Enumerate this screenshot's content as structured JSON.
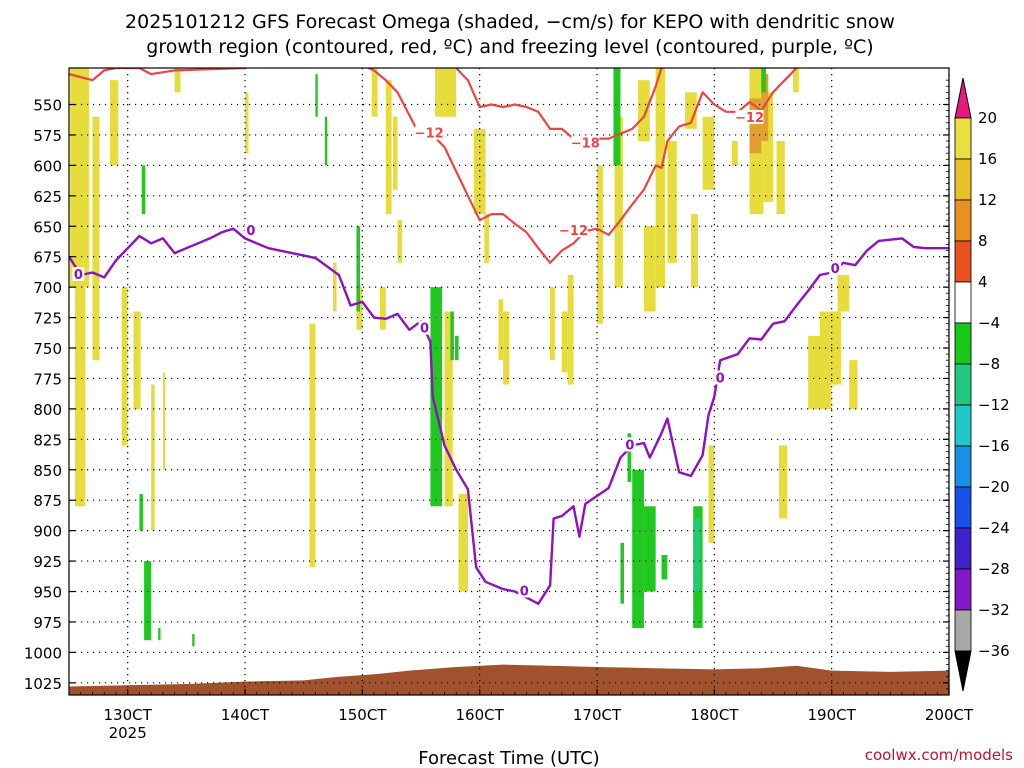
{
  "chart_data": {
    "type": "time-height",
    "title_line1": "2025101212 GFS Forecast Omega (shaded, −cm/s) for KEPO with dendritic snow",
    "title_line2": "growth region (contoured, red, ºC) and freezing level (contoured, purple, ºC)",
    "xlabel": "Forecast Time (UTC)",
    "credit": "coolwx.com/models",
    "x_range_hours": [
      125,
      200
    ],
    "x_ticks": [
      {
        "t": 130,
        "label": "130CT",
        "sub": "2025"
      },
      {
        "t": 140,
        "label": "140CT"
      },
      {
        "t": 150,
        "label": "150CT"
      },
      {
        "t": 160,
        "label": "160CT"
      },
      {
        "t": 170,
        "label": "170CT"
      },
      {
        "t": 180,
        "label": "180CT"
      },
      {
        "t": 190,
        "label": "190CT"
      },
      {
        "t": 200,
        "label": "200CT"
      }
    ],
    "y_range_hpa": [
      1035,
      520
    ],
    "y_ticks": [
      550,
      575,
      600,
      625,
      650,
      675,
      700,
      725,
      750,
      775,
      800,
      825,
      850,
      875,
      900,
      925,
      950,
      975,
      1000,
      1025
    ],
    "colorbar": {
      "labels": [
        "20",
        "16",
        "12",
        "8",
        "4",
        "−4",
        "−8",
        "−12",
        "−16",
        "−20",
        "−24",
        "−28",
        "−32",
        "−36"
      ],
      "colors": [
        "#e8e040",
        "#e8c028",
        "#e89020",
        "#e85020",
        "#ffffff",
        "#18c818",
        "#20c880",
        "#20c8c8",
        "#1890e8",
        "#1850e8",
        "#4020c8",
        "#8018c8",
        "#a8a8a8"
      ],
      "top_arrow_color": "#e81880",
      "bottom_arrow_color": "#000000"
    },
    "omega_positive_color": "#e6dc3c",
    "omega_negative_color": "#22c822",
    "omega_strong_positive_color": "#e0a030",
    "terrain_color": "#a0522d",
    "dgz_color": "#ee4444",
    "freezing_color": "#9010c0",
    "freezing_level_series": [
      {
        "t": 125.0,
        "p": 675
      },
      {
        "t": 126.0,
        "p": 690
      },
      {
        "t": 127.0,
        "p": 688
      },
      {
        "t": 128.0,
        "p": 692
      },
      {
        "t": 129.0,
        "p": 678
      },
      {
        "t": 130.0,
        "p": 668
      },
      {
        "t": 131.0,
        "p": 658
      },
      {
        "t": 132.0,
        "p": 664
      },
      {
        "t": 133.0,
        "p": 660
      },
      {
        "t": 134.0,
        "p": 672
      },
      {
        "t": 135.0,
        "p": 668
      },
      {
        "t": 136.0,
        "p": 664
      },
      {
        "t": 137.0,
        "p": 660
      },
      {
        "t": 138.0,
        "p": 655
      },
      {
        "t": 139.0,
        "p": 652
      },
      {
        "t": 140.0,
        "p": 660
      },
      {
        "t": 142.0,
        "p": 668
      },
      {
        "t": 144.0,
        "p": 672
      },
      {
        "t": 146.0,
        "p": 676
      },
      {
        "t": 148.0,
        "p": 690
      },
      {
        "t": 149.0,
        "p": 715
      },
      {
        "t": 150.0,
        "p": 712
      },
      {
        "t": 151.0,
        "p": 725
      },
      {
        "t": 152.0,
        "p": 726
      },
      {
        "t": 153.0,
        "p": 722
      },
      {
        "t": 154.0,
        "p": 735
      },
      {
        "t": 155.0,
        "p": 728
      },
      {
        "t": 155.8,
        "p": 745
      },
      {
        "t": 156.0,
        "p": 790
      },
      {
        "t": 157.0,
        "p": 830
      },
      {
        "t": 158.0,
        "p": 850
      },
      {
        "t": 159.0,
        "p": 866
      },
      {
        "t": 159.7,
        "p": 930
      },
      {
        "t": 160.5,
        "p": 942
      },
      {
        "t": 162.0,
        "p": 948
      },
      {
        "t": 163.0,
        "p": 950
      },
      {
        "t": 164.0,
        "p": 955
      },
      {
        "t": 165.0,
        "p": 960
      },
      {
        "t": 166.0,
        "p": 945
      },
      {
        "t": 166.3,
        "p": 890
      },
      {
        "t": 167.0,
        "p": 888
      },
      {
        "t": 168.0,
        "p": 880
      },
      {
        "t": 168.5,
        "p": 905
      },
      {
        "t": 169.0,
        "p": 878
      },
      {
        "t": 171.0,
        "p": 865
      },
      {
        "t": 172.0,
        "p": 840
      },
      {
        "t": 173.0,
        "p": 830
      },
      {
        "t": 174.0,
        "p": 828
      },
      {
        "t": 174.5,
        "p": 840
      },
      {
        "t": 175.5,
        "p": 820
      },
      {
        "t": 176.0,
        "p": 808
      },
      {
        "t": 177.0,
        "p": 852
      },
      {
        "t": 178.0,
        "p": 855
      },
      {
        "t": 179.0,
        "p": 838
      },
      {
        "t": 179.5,
        "p": 805
      },
      {
        "t": 180.0,
        "p": 790
      },
      {
        "t": 180.5,
        "p": 760
      },
      {
        "t": 182.0,
        "p": 755
      },
      {
        "t": 183.0,
        "p": 742
      },
      {
        "t": 184.0,
        "p": 743
      },
      {
        "t": 185.0,
        "p": 730
      },
      {
        "t": 186.0,
        "p": 728
      },
      {
        "t": 187.0,
        "p": 715
      },
      {
        "t": 188.0,
        "p": 703
      },
      {
        "t": 189.0,
        "p": 690
      },
      {
        "t": 190.0,
        "p": 688
      },
      {
        "t": 191.0,
        "p": 680
      },
      {
        "t": 192.0,
        "p": 682
      },
      {
        "t": 193.0,
        "p": 670
      },
      {
        "t": 194.0,
        "p": 662
      },
      {
        "t": 196.0,
        "p": 660
      },
      {
        "t": 197.0,
        "p": 667
      },
      {
        "t": 198.0,
        "p": 668
      },
      {
        "t": 200.0,
        "p": 668
      }
    ],
    "dgz_upper_series": [
      {
        "t": 125.0,
        "p": 525
      },
      {
        "t": 127.0,
        "p": 530
      },
      {
        "t": 128.0,
        "p": 522
      },
      {
        "t": 129.0,
        "p": 520
      },
      {
        "t": 131.0,
        "p": 520
      },
      {
        "t": 132.0,
        "p": 525
      },
      {
        "t": 134.0,
        "p": 522
      },
      {
        "t": 140.0,
        "p": 520
      }
    ],
    "dgz_main_series": [
      {
        "t": 150.5,
        "p": 520
      },
      {
        "t": 151.0,
        "p": 522
      },
      {
        "t": 152.0,
        "p": 530
      },
      {
        "t": 153.0,
        "p": 540
      },
      {
        "t": 154.5,
        "p": 568
      },
      {
        "t": 156.0,
        "p": 575
      },
      {
        "t": 157.0,
        "p": 585
      },
      {
        "t": 158.0,
        "p": 605
      },
      {
        "t": 159.0,
        "p": 625
      },
      {
        "t": 160.0,
        "p": 645
      },
      {
        "t": 161.0,
        "p": 640
      },
      {
        "t": 162.0,
        "p": 640
      },
      {
        "t": 163.0,
        "p": 648
      },
      {
        "t": 164.0,
        "p": 655
      },
      {
        "t": 165.0,
        "p": 668
      },
      {
        "t": 166.0,
        "p": 680
      },
      {
        "t": 167.0,
        "p": 670
      },
      {
        "t": 168.0,
        "p": 664
      },
      {
        "t": 169.0,
        "p": 654
      },
      {
        "t": 170.0,
        "p": 652
      },
      {
        "t": 171.0,
        "p": 657
      },
      {
        "t": 172.0,
        "p": 645
      },
      {
        "t": 173.0,
        "p": 632
      },
      {
        "t": 174.0,
        "p": 620
      },
      {
        "t": 175.0,
        "p": 600
      },
      {
        "t": 175.5,
        "p": 602
      },
      {
        "t": 176.0,
        "p": 580
      },
      {
        "t": 177.0,
        "p": 568
      },
      {
        "t": 178.0,
        "p": 565
      },
      {
        "t": 179.0,
        "p": 540
      },
      {
        "t": 180.0,
        "p": 550
      },
      {
        "t": 181.0,
        "p": 556
      },
      {
        "t": 182.0,
        "p": 556
      },
      {
        "t": 183.0,
        "p": 548
      },
      {
        "t": 184.0,
        "p": 555
      },
      {
        "t": 185.0,
        "p": 540
      },
      {
        "t": 186.0,
        "p": 530
      },
      {
        "t": 187.0,
        "p": 520
      }
    ],
    "dgz_inner_series": [
      {
        "t": 158.0,
        "p": 520
      },
      {
        "t": 159.0,
        "p": 530
      },
      {
        "t": 160.0,
        "p": 552
      },
      {
        "t": 161.0,
        "p": 550
      },
      {
        "t": 162.0,
        "p": 552
      },
      {
        "t": 163.0,
        "p": 550
      },
      {
        "t": 164.0,
        "p": 552
      },
      {
        "t": 165.0,
        "p": 556
      },
      {
        "t": 166.0,
        "p": 570
      },
      {
        "t": 167.0,
        "p": 570
      },
      {
        "t": 168.0,
        "p": 578
      },
      {
        "t": 169.0,
        "p": 584
      },
      {
        "t": 170.0,
        "p": 578
      },
      {
        "t": 171.0,
        "p": 578
      },
      {
        "t": 172.0,
        "p": 574
      },
      {
        "t": 173.0,
        "p": 570
      },
      {
        "t": 174.0,
        "p": 560
      },
      {
        "t": 175.0,
        "p": 535
      },
      {
        "t": 175.5,
        "p": 520
      }
    ],
    "terrain_series": [
      {
        "t": 125.0,
        "p": 1028
      },
      {
        "t": 130.0,
        "p": 1027
      },
      {
        "t": 135.0,
        "p": 1026
      },
      {
        "t": 140.0,
        "p": 1024
      },
      {
        "t": 145.0,
        "p": 1023
      },
      {
        "t": 148.0,
        "p": 1020
      },
      {
        "t": 151.0,
        "p": 1018
      },
      {
        "t": 154.0,
        "p": 1015
      },
      {
        "t": 158.0,
        "p": 1012
      },
      {
        "t": 162.0,
        "p": 1010
      },
      {
        "t": 166.0,
        "p": 1011
      },
      {
        "t": 170.0,
        "p": 1012
      },
      {
        "t": 175.0,
        "p": 1013
      },
      {
        "t": 180.0,
        "p": 1014
      },
      {
        "t": 184.0,
        "p": 1013
      },
      {
        "t": 187.0,
        "p": 1011
      },
      {
        "t": 190.0,
        "p": 1015
      },
      {
        "t": 195.0,
        "p": 1016
      },
      {
        "t": 200.0,
        "p": 1015
      }
    ],
    "omega_positive_regions": [
      {
        "t0": 125.1,
        "t1": 126.7,
        "p0": 520,
        "p1": 700
      },
      {
        "t0": 125.5,
        "t1": 126.4,
        "p0": 700,
        "p1": 880
      },
      {
        "t0": 127.0,
        "t1": 127.6,
        "p0": 560,
        "p1": 760
      },
      {
        "t0": 128.5,
        "t1": 129.2,
        "p0": 530,
        "p1": 600
      },
      {
        "t0": 129.5,
        "t1": 130.0,
        "p0": 700,
        "p1": 830
      },
      {
        "t0": 130.5,
        "t1": 131.1,
        "p0": 720,
        "p1": 800
      },
      {
        "t0": 132.0,
        "t1": 132.3,
        "p0": 780,
        "p1": 900
      },
      {
        "t0": 133.0,
        "t1": 133.2,
        "p0": 770,
        "p1": 850
      },
      {
        "t0": 134.0,
        "t1": 134.5,
        "p0": 520,
        "p1": 540
      },
      {
        "t0": 140.0,
        "t1": 140.3,
        "p0": 540,
        "p1": 590
      },
      {
        "t0": 145.5,
        "t1": 146.0,
        "p0": 730,
        "p1": 930
      },
      {
        "t0": 147.5,
        "t1": 147.8,
        "p0": 680,
        "p1": 720
      },
      {
        "t0": 149.5,
        "t1": 150.0,
        "p0": 700,
        "p1": 735
      },
      {
        "t0": 151.5,
        "t1": 152.0,
        "p0": 700,
        "p1": 735
      },
      {
        "t0": 150.8,
        "t1": 151.3,
        "p0": 520,
        "p1": 560
      },
      {
        "t0": 152.0,
        "t1": 152.5,
        "p0": 530,
        "p1": 640
      },
      {
        "t0": 152.6,
        "t1": 153.0,
        "p0": 560,
        "p1": 620
      },
      {
        "t0": 153.0,
        "t1": 153.4,
        "p0": 645,
        "p1": 680
      },
      {
        "t0": 156.2,
        "t1": 158.0,
        "p0": 520,
        "p1": 560
      },
      {
        "t0": 157.0,
        "t1": 157.7,
        "p0": 720,
        "p1": 880
      },
      {
        "t0": 158.2,
        "t1": 159.0,
        "p0": 870,
        "p1": 950
      },
      {
        "t0": 159.5,
        "t1": 160.5,
        "p0": 570,
        "p1": 640
      },
      {
        "t0": 160.4,
        "t1": 160.8,
        "p0": 640,
        "p1": 680
      },
      {
        "t0": 161.6,
        "t1": 162.0,
        "p0": 710,
        "p1": 760
      },
      {
        "t0": 162.0,
        "t1": 162.5,
        "p0": 720,
        "p1": 780
      },
      {
        "t0": 166.0,
        "t1": 166.4,
        "p0": 700,
        "p1": 760
      },
      {
        "t0": 167.0,
        "t1": 167.5,
        "p0": 720,
        "p1": 770
      },
      {
        "t0": 167.5,
        "t1": 168.0,
        "p0": 690,
        "p1": 780
      },
      {
        "t0": 170.0,
        "t1": 170.5,
        "p0": 600,
        "p1": 730
      },
      {
        "t0": 171.5,
        "t1": 172.2,
        "p0": 560,
        "p1": 700
      },
      {
        "t0": 173.5,
        "t1": 174.5,
        "p0": 530,
        "p1": 580
      },
      {
        "t0": 174.0,
        "t1": 175.0,
        "p0": 650,
        "p1": 720
      },
      {
        "t0": 175.0,
        "t1": 175.8,
        "p0": 520,
        "p1": 700
      },
      {
        "t0": 176.0,
        "t1": 176.8,
        "p0": 580,
        "p1": 680
      },
      {
        "t0": 177.5,
        "t1": 178.5,
        "p0": 540,
        "p1": 570
      },
      {
        "t0": 178.0,
        "t1": 178.6,
        "p0": 640,
        "p1": 700
      },
      {
        "t0": 179.0,
        "t1": 180.0,
        "p0": 560,
        "p1": 620
      },
      {
        "t0": 179.5,
        "t1": 180.0,
        "p0": 830,
        "p1": 910
      },
      {
        "t0": 181.5,
        "t1": 182.0,
        "p0": 580,
        "p1": 600
      },
      {
        "t0": 183.0,
        "t1": 184.2,
        "p0": 520,
        "p1": 640
      },
      {
        "t0": 184.2,
        "t1": 185.0,
        "p0": 540,
        "p1": 630
      },
      {
        "t0": 185.3,
        "t1": 186.0,
        "p0": 580,
        "p1": 640
      },
      {
        "t0": 186.7,
        "t1": 187.2,
        "p0": 520,
        "p1": 540
      },
      {
        "t0": 185.5,
        "t1": 186.2,
        "p0": 830,
        "p1": 890
      },
      {
        "t0": 188.0,
        "t1": 190.0,
        "p0": 740,
        "p1": 800
      },
      {
        "t0": 189.0,
        "t1": 190.8,
        "p0": 720,
        "p1": 780
      },
      {
        "t0": 191.5,
        "t1": 192.2,
        "p0": 760,
        "p1": 800
      },
      {
        "t0": 190.5,
        "t1": 191.5,
        "p0": 690,
        "p1": 720
      }
    ],
    "omega_strong_positive_regions": [
      {
        "t0": 183.0,
        "t1": 184.0,
        "p0": 545,
        "p1": 590
      },
      {
        "t0": 184.0,
        "t1": 184.6,
        "p0": 525,
        "p1": 580
      }
    ],
    "omega_negative_regions": [
      {
        "t0": 131.2,
        "t1": 131.5,
        "p0": 600,
        "p1": 640
      },
      {
        "t0": 131.0,
        "t1": 131.3,
        "p0": 870,
        "p1": 900
      },
      {
        "t0": 131.4,
        "t1": 132.0,
        "p0": 925,
        "p1": 990
      },
      {
        "t0": 132.6,
        "t1": 132.8,
        "p0": 980,
        "p1": 990
      },
      {
        "t0": 135.5,
        "t1": 135.7,
        "p0": 985,
        "p1": 995
      },
      {
        "t0": 146.0,
        "t1": 146.2,
        "p0": 525,
        "p1": 560
      },
      {
        "t0": 146.8,
        "t1": 147.0,
        "p0": 560,
        "p1": 600
      },
      {
        "t0": 149.5,
        "t1": 149.8,
        "p0": 650,
        "p1": 720
      },
      {
        "t0": 155.8,
        "t1": 156.8,
        "p0": 700,
        "p1": 880
      },
      {
        "t0": 157.5,
        "t1": 157.8,
        "p0": 720,
        "p1": 760
      },
      {
        "t0": 157.9,
        "t1": 158.2,
        "p0": 740,
        "p1": 760
      },
      {
        "t0": 171.4,
        "t1": 172.0,
        "p0": 520,
        "p1": 600
      },
      {
        "t0": 172.6,
        "t1": 172.9,
        "p0": 820,
        "p1": 860
      },
      {
        "t0": 173.0,
        "t1": 174.0,
        "p0": 850,
        "p1": 980
      },
      {
        "t0": 174.0,
        "t1": 175.0,
        "p0": 880,
        "p1": 950
      },
      {
        "t0": 172.0,
        "t1": 172.3,
        "p0": 910,
        "p1": 960
      },
      {
        "t0": 175.5,
        "t1": 176.0,
        "p0": 920,
        "p1": 940
      },
      {
        "t0": 178.2,
        "t1": 179.0,
        "p0": 880,
        "p1": 980
      },
      {
        "t0": 184.0,
        "t1": 184.4,
        "p0": 520,
        "p1": 540
      }
    ],
    "omega_teal_regions": [
      {
        "t0": 178.3,
        "t1": 178.8,
        "p0": 890,
        "p1": 950
      }
    ],
    "contour_labels": [
      {
        "t": 125.8,
        "p": 690,
        "text": "0",
        "color": "#9010c0"
      },
      {
        "t": 140.5,
        "p": 654,
        "text": "0",
        "color": "#9010c0"
      },
      {
        "t": 155.3,
        "p": 734,
        "text": "0",
        "color": "#9010c0"
      },
      {
        "t": 163.8,
        "p": 950,
        "text": "0",
        "color": "#9010c0"
      },
      {
        "t": 172.8,
        "p": 830,
        "text": "0",
        "color": "#9010c0"
      },
      {
        "t": 180.5,
        "p": 775,
        "text": "0",
        "color": "#9010c0"
      },
      {
        "t": 190.3,
        "p": 685,
        "text": "0",
        "color": "#9010c0"
      },
      {
        "t": 155.7,
        "p": 574,
        "text": "−12",
        "color": "#ee4444"
      },
      {
        "t": 168.0,
        "p": 654,
        "text": "−12",
        "color": "#ee4444"
      },
      {
        "t": 183.0,
        "p": 561,
        "text": "−12",
        "color": "#ee4444"
      },
      {
        "t": 169.0,
        "p": 582,
        "text": "−18",
        "color": "#ee4444"
      }
    ]
  }
}
